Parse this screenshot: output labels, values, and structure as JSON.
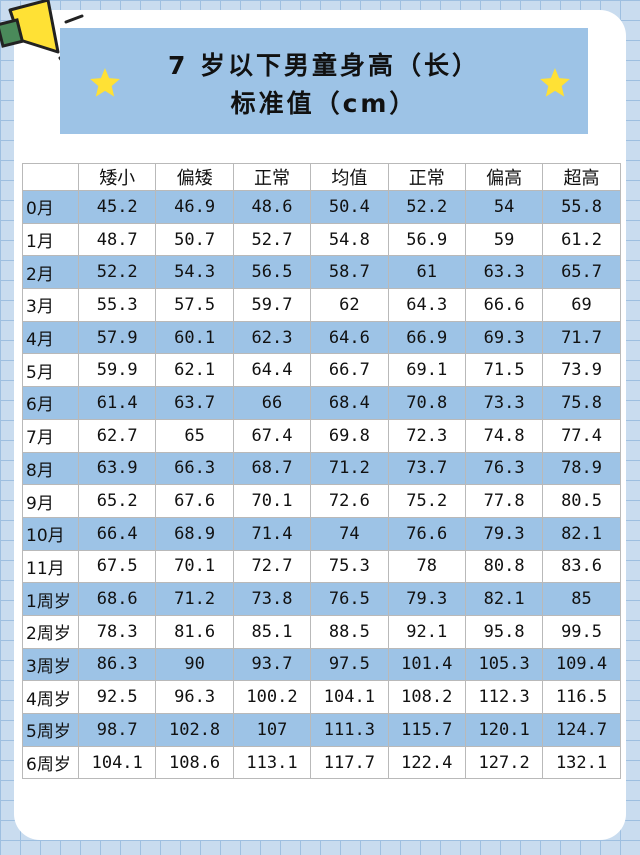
{
  "title": {
    "line1": "7 岁以下男童身高（长）",
    "line2": "标准值（cm）"
  },
  "icons": {
    "star": "star-icon",
    "megaphone": "megaphone-icon"
  },
  "colors": {
    "background": "#c9dcef",
    "accent_blue": "#9dc3e6",
    "star": "#ffe135"
  },
  "table": {
    "headers": [
      "",
      "矮小",
      "偏矮",
      "正常",
      "均值",
      "正常",
      "偏高",
      "超高"
    ],
    "rows": [
      {
        "age": "0月",
        "values": [
          "45.2",
          "46.9",
          "48.6",
          "50.4",
          "52.2",
          "54",
          "55.8"
        ]
      },
      {
        "age": "1月",
        "values": [
          "48.7",
          "50.7",
          "52.7",
          "54.8",
          "56.9",
          "59",
          "61.2"
        ]
      },
      {
        "age": "2月",
        "values": [
          "52.2",
          "54.3",
          "56.5",
          "58.7",
          "61",
          "63.3",
          "65.7"
        ]
      },
      {
        "age": "3月",
        "values": [
          "55.3",
          "57.5",
          "59.7",
          "62",
          "64.3",
          "66.6",
          "69"
        ]
      },
      {
        "age": "4月",
        "values": [
          "57.9",
          "60.1",
          "62.3",
          "64.6",
          "66.9",
          "69.3",
          "71.7"
        ]
      },
      {
        "age": "5月",
        "values": [
          "59.9",
          "62.1",
          "64.4",
          "66.7",
          "69.1",
          "71.5",
          "73.9"
        ]
      },
      {
        "age": "6月",
        "values": [
          "61.4",
          "63.7",
          "66",
          "68.4",
          "70.8",
          "73.3",
          "75.8"
        ]
      },
      {
        "age": "7月",
        "values": [
          "62.7",
          "65",
          "67.4",
          "69.8",
          "72.3",
          "74.8",
          "77.4"
        ]
      },
      {
        "age": "8月",
        "values": [
          "63.9",
          "66.3",
          "68.7",
          "71.2",
          "73.7",
          "76.3",
          "78.9"
        ]
      },
      {
        "age": "9月",
        "values": [
          "65.2",
          "67.6",
          "70.1",
          "72.6",
          "75.2",
          "77.8",
          "80.5"
        ]
      },
      {
        "age": "10月",
        "values": [
          "66.4",
          "68.9",
          "71.4",
          "74",
          "76.6",
          "79.3",
          "82.1"
        ]
      },
      {
        "age": "11月",
        "values": [
          "67.5",
          "70.1",
          "72.7",
          "75.3",
          "78",
          "80.8",
          "83.6"
        ]
      },
      {
        "age": "1周岁",
        "values": [
          "68.6",
          "71.2",
          "73.8",
          "76.5",
          "79.3",
          "82.1",
          "85"
        ]
      },
      {
        "age": "2周岁",
        "values": [
          "78.3",
          "81.6",
          "85.1",
          "88.5",
          "92.1",
          "95.8",
          "99.5"
        ]
      },
      {
        "age": "3周岁",
        "values": [
          "86.3",
          "90",
          "93.7",
          "97.5",
          "101.4",
          "105.3",
          "109.4"
        ]
      },
      {
        "age": "4周岁",
        "values": [
          "92.5",
          "96.3",
          "100.2",
          "104.1",
          "108.2",
          "112.3",
          "116.5"
        ]
      },
      {
        "age": "5周岁",
        "values": [
          "98.7",
          "102.8",
          "107",
          "111.3",
          "115.7",
          "120.1",
          "124.7"
        ]
      },
      {
        "age": "6周岁",
        "values": [
          "104.1",
          "108.6",
          "113.1",
          "117.7",
          "122.4",
          "127.2",
          "132.1"
        ]
      }
    ]
  }
}
